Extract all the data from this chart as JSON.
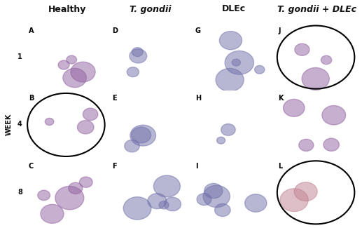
{
  "title": "",
  "col_headers": [
    "Healthy",
    "T. gondii",
    "DLEc",
    "T. gondii + DLEc"
  ],
  "col_headers_italic": [
    false,
    true,
    false,
    true
  ],
  "col_header_plus_normal": [
    false,
    false,
    false,
    false
  ],
  "row_labels": [
    "1",
    "4",
    "8"
  ],
  "week_label": "WEEK",
  "panel_labels": [
    [
      "A",
      "D",
      "G",
      "J"
    ],
    [
      "B",
      "E",
      "H",
      "K"
    ],
    [
      "C",
      "F",
      "I",
      "L"
    ]
  ],
  "n_rows": 3,
  "n_cols": 4,
  "background_color": "#ffffff",
  "border_color": "#000000",
  "header_fontsize": 9,
  "label_fontsize": 7,
  "week_fontsize": 7,
  "panel_label_fontsize": 7
}
